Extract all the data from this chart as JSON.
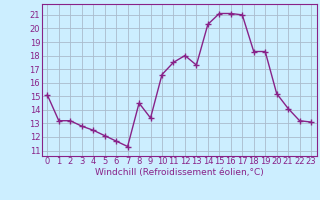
{
  "x": [
    0,
    1,
    2,
    3,
    4,
    5,
    6,
    7,
    8,
    9,
    10,
    11,
    12,
    13,
    14,
    15,
    16,
    17,
    18,
    19,
    20,
    21,
    22,
    23
  ],
  "y": [
    15.1,
    13.2,
    13.2,
    12.8,
    12.5,
    12.1,
    11.7,
    11.3,
    14.5,
    13.4,
    16.6,
    17.5,
    18.0,
    17.3,
    20.3,
    21.1,
    21.1,
    21.0,
    18.3,
    18.3,
    15.2,
    14.1,
    13.2,
    13.1
  ],
  "line_color": "#882288",
  "marker": "+",
  "marker_size": 4,
  "line_width": 1.0,
  "bg_color": "#cceeff",
  "grid_color": "#aabbcc",
  "xlabel": "Windchill (Refroidissement éolien,°C)",
  "xlabel_fontsize": 6.5,
  "xtick_labels": [
    "0",
    "1",
    "2",
    "3",
    "4",
    "5",
    "6",
    "7",
    "8",
    "9",
    "10",
    "11",
    "12",
    "13",
    "14",
    "15",
    "16",
    "17",
    "18",
    "19",
    "20",
    "21",
    "22",
    "23"
  ],
  "ytick_min": 11,
  "ytick_max": 21,
  "ylim": [
    10.6,
    21.8
  ],
  "xlim": [
    -0.5,
    23.5
  ],
  "tick_fontsize": 6.0
}
